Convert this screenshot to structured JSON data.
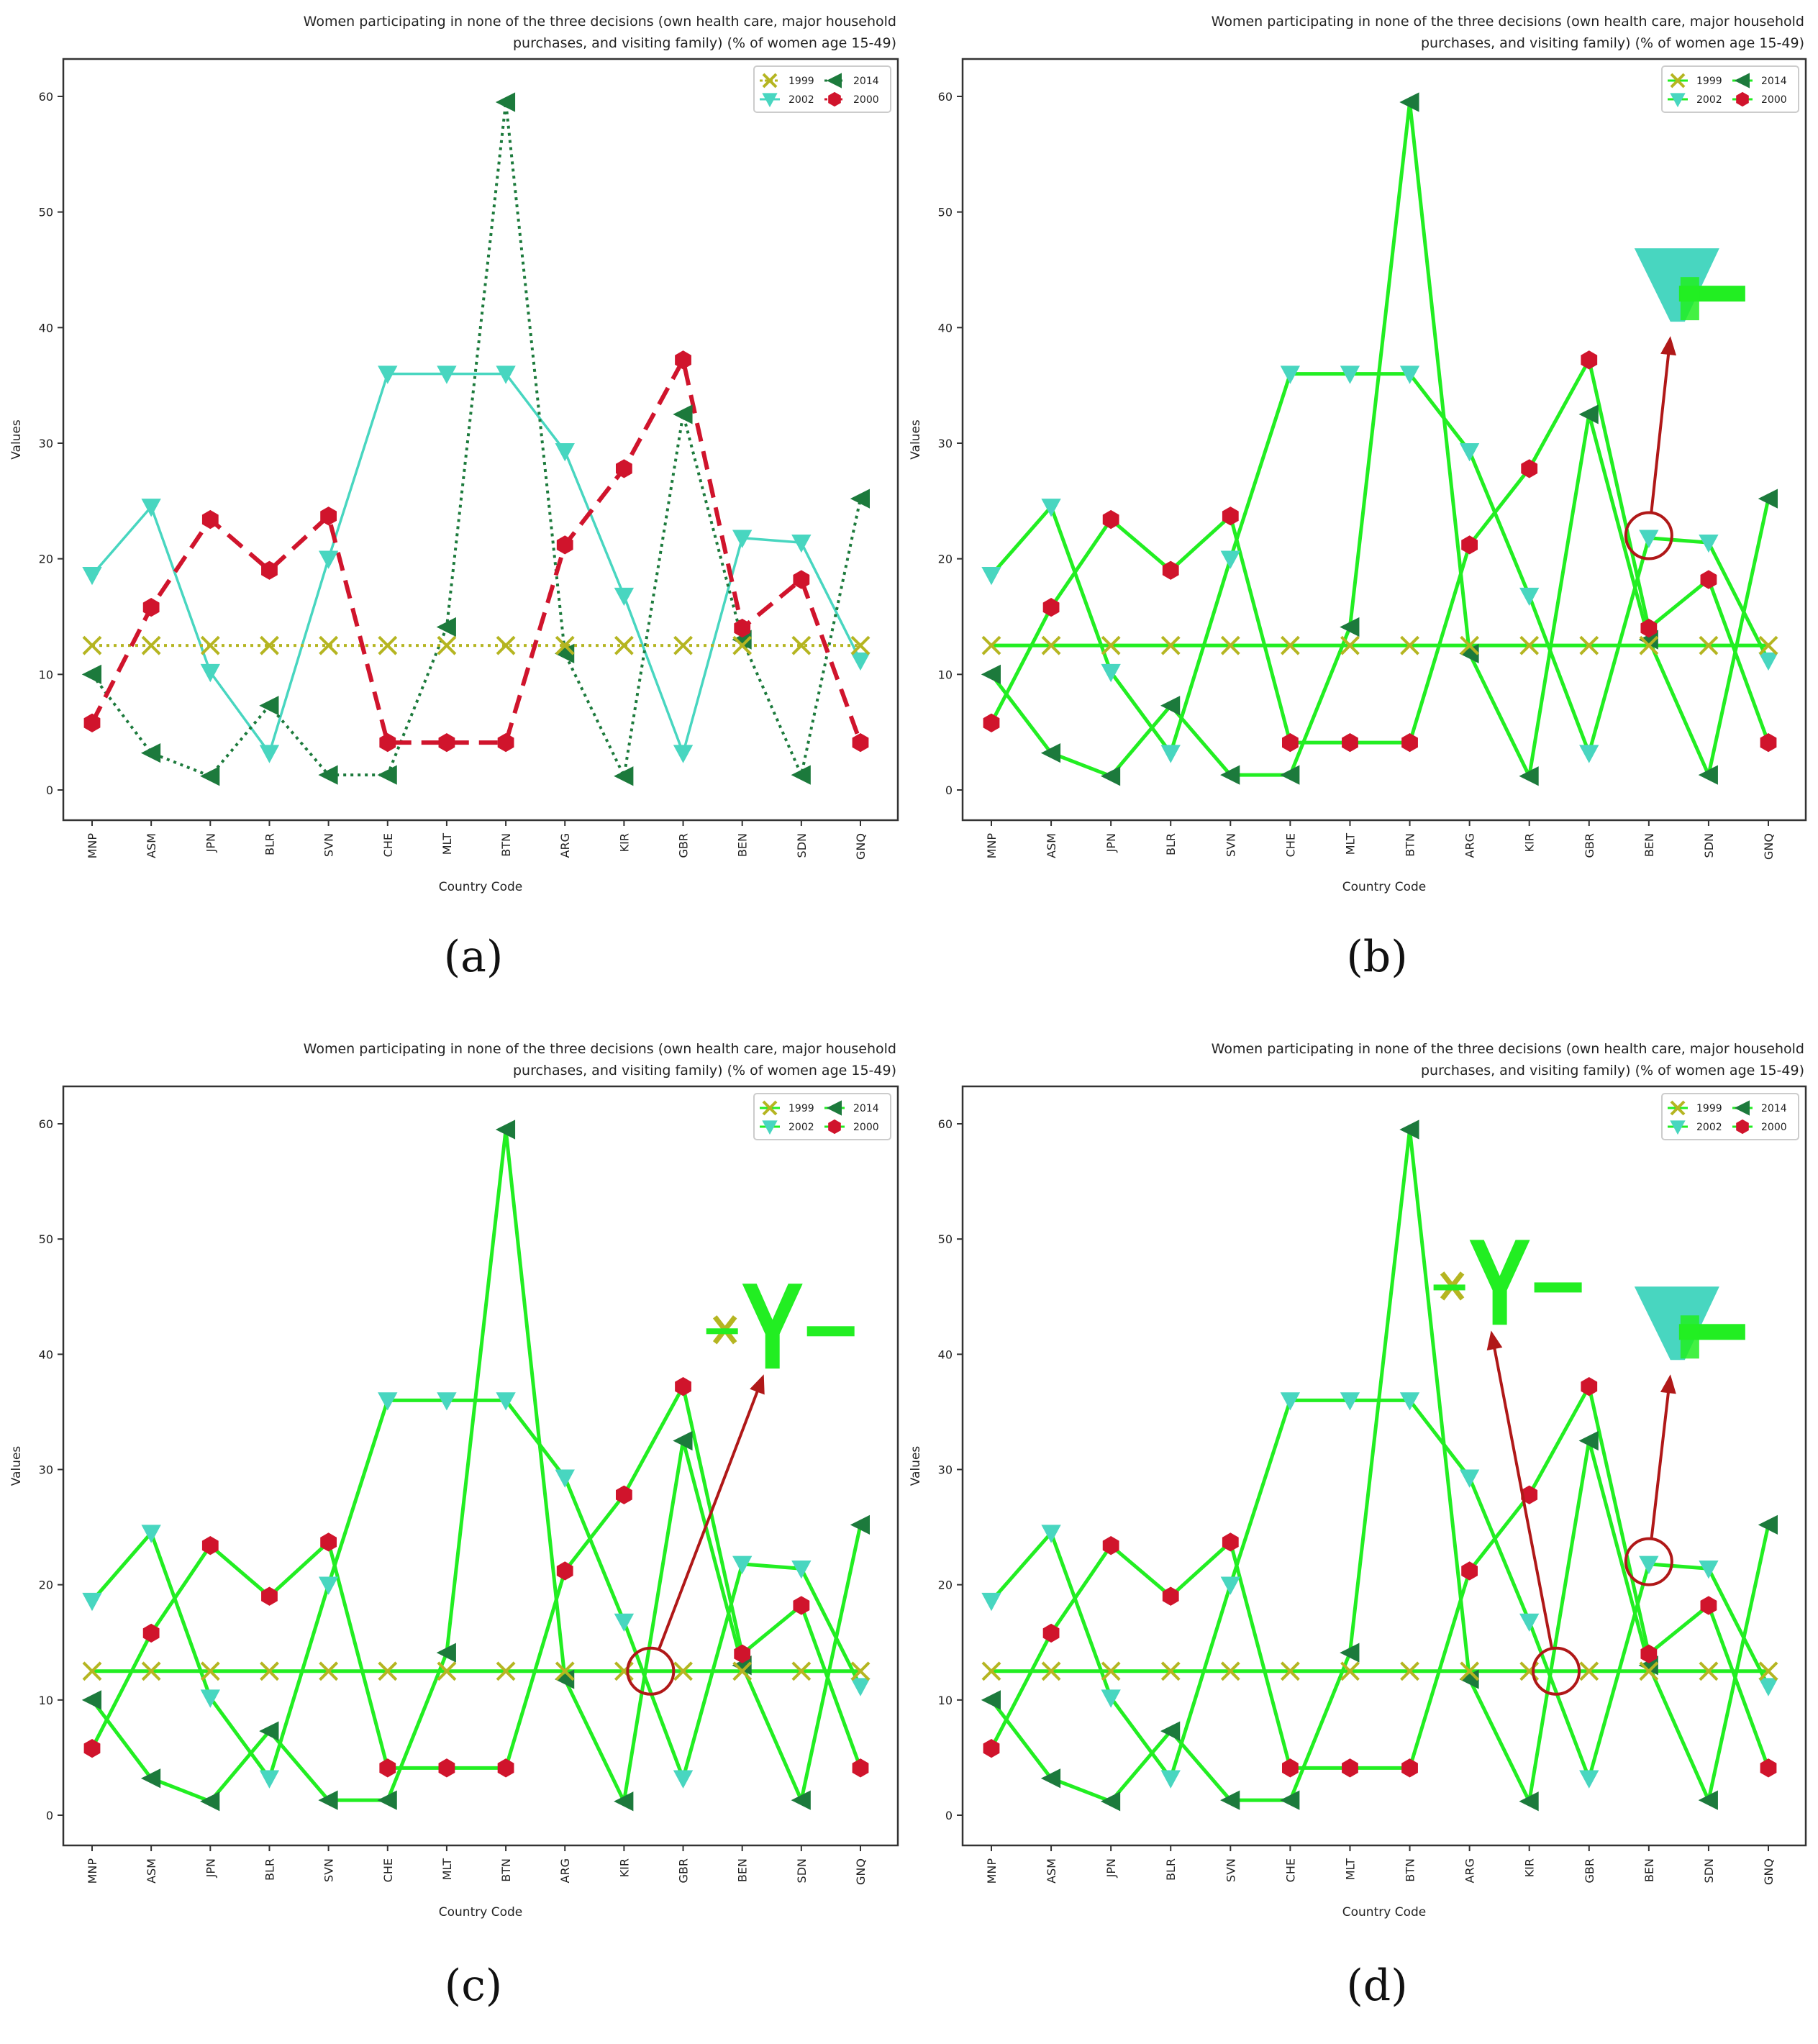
{
  "chart_data": [
    {
      "type": "line",
      "panel_caption": "(a)",
      "style": "original",
      "title_lines": [
        "Women participating in none of the three decisions (own health care, major household",
        "purchases, and visiting family) (% of women age 15-49)"
      ],
      "xlabel": "Country Code",
      "ylabel": "Values",
      "ylim": [
        0,
        60
      ],
      "yticks": [
        "0",
        "10",
        "20",
        "30",
        "40",
        "50",
        "60"
      ],
      "categories": [
        "MNP",
        "ASM",
        "JPN",
        "BLR",
        "SVN",
        "CHE",
        "MLT",
        "BTN",
        "ARG",
        "KIR",
        "GBR",
        "BEN",
        "SDN",
        "GNQ"
      ],
      "legend": [
        "1999",
        "2014",
        "2002",
        "2000"
      ],
      "series": [
        {
          "name": "1999",
          "values": [
            12.5,
            12.5,
            12.5,
            12.5,
            12.5,
            12.5,
            12.5,
            12.5,
            12.5,
            12.5,
            12.5,
            12.5,
            12.5,
            12.5
          ]
        },
        {
          "name": "2014",
          "values": [
            10,
            3.2,
            1.2,
            7.3,
            1.3,
            1.3,
            14.1,
            59.5,
            11.8,
            1.2,
            32.5,
            13,
            1.3,
            25.2
          ]
        },
        {
          "name": "2002",
          "values": [
            18.6,
            24.5,
            10.2,
            3.2,
            20,
            36,
            36,
            36,
            29.3,
            16.8,
            3.2,
            21.8,
            21.4,
            11.2
          ]
        },
        {
          "name": "2000",
          "values": [
            5.8,
            15.8,
            23.4,
            19,
            23.7,
            4.1,
            4.1,
            4.1,
            21.2,
            27.8,
            37.2,
            14,
            18.2,
            4.1
          ]
        }
      ]
    },
    {
      "type": "line",
      "panel_caption": "(b)",
      "style": "green",
      "title_lines": [
        "Women participating in none of the three decisions (own health care, major household",
        "purchases, and visiting family) (% of women age 15-49)"
      ],
      "xlabel": "Country Code",
      "ylabel": "Values",
      "ylim": [
        0,
        60
      ],
      "yticks": [
        "0",
        "10",
        "20",
        "30",
        "40",
        "50",
        "60"
      ],
      "categories": [
        "MNP",
        "ASM",
        "JPN",
        "BLR",
        "SVN",
        "CHE",
        "MLT",
        "BTN",
        "ARG",
        "KIR",
        "GBR",
        "BEN",
        "SDN",
        "GNQ"
      ],
      "legend": [
        "1999",
        "2014",
        "2002",
        "2000"
      ],
      "series": [
        {
          "name": "1999",
          "values": [
            12.5,
            12.5,
            12.5,
            12.5,
            12.5,
            12.5,
            12.5,
            12.5,
            12.5,
            12.5,
            12.5,
            12.5,
            12.5,
            12.5
          ]
        },
        {
          "name": "2014",
          "values": [
            10,
            3.2,
            1.2,
            7.3,
            1.3,
            1.3,
            14.1,
            59.5,
            11.8,
            1.2,
            32.5,
            13,
            1.3,
            25.2
          ]
        },
        {
          "name": "2002",
          "values": [
            18.6,
            24.5,
            10.2,
            3.2,
            20,
            36,
            36,
            36,
            29.3,
            16.8,
            3.2,
            21.8,
            21.4,
            11.2
          ]
        },
        {
          "name": "2000",
          "values": [
            5.8,
            15.8,
            23.4,
            19,
            23.7,
            4.1,
            4.1,
            4.1,
            21.2,
            27.8,
            37.2,
            14,
            18.2,
            4.1
          ]
        }
      ],
      "annotations": [
        {
          "circle_at": {
            "category": "BEN",
            "value": 22
          },
          "zoom_at": {
            "category": "BEN",
            "value": 43
          },
          "zoom_content": "2002-legend"
        }
      ]
    },
    {
      "type": "line",
      "panel_caption": "(c)",
      "style": "green",
      "title_lines": [
        "Women participating in none of the three decisions (own health care, major household",
        "purchases, and visiting family) (% of women age 15-49)"
      ],
      "xlabel": "Country Code",
      "ylabel": "Values",
      "ylim": [
        0,
        60
      ],
      "yticks": [
        "0",
        "10",
        "20",
        "30",
        "40",
        "50",
        "60"
      ],
      "categories": [
        "MNP",
        "ASM",
        "JPN",
        "BLR",
        "SVN",
        "CHE",
        "MLT",
        "BTN",
        "ARG",
        "KIR",
        "GBR",
        "BEN",
        "SDN",
        "GNQ"
      ],
      "legend": [
        "1999",
        "2014",
        "2002",
        "2000"
      ],
      "series": [
        {
          "name": "1999",
          "values": [
            12.5,
            12.5,
            12.5,
            12.5,
            12.5,
            12.5,
            12.5,
            12.5,
            12.5,
            12.5,
            12.5,
            12.5,
            12.5,
            12.5
          ]
        },
        {
          "name": "2014",
          "values": [
            10,
            3.2,
            1.2,
            7.3,
            1.3,
            1.3,
            14.1,
            59.5,
            11.8,
            1.2,
            32.5,
            13,
            1.3,
            25.2
          ]
        },
        {
          "name": "2002",
          "values": [
            18.6,
            24.5,
            10.2,
            3.2,
            20,
            36,
            36,
            36,
            29.3,
            16.8,
            3.2,
            21.8,
            21.4,
            11.2
          ]
        },
        {
          "name": "2000",
          "values": [
            5.8,
            15.8,
            23.4,
            19,
            23.7,
            4.1,
            4.1,
            4.1,
            21.2,
            27.8,
            37.2,
            14,
            18.2,
            4.1
          ]
        }
      ],
      "annotations": [
        {
          "circle_at": {
            "category": "KIR",
            "value": 12.5,
            "offset": 0.45
          },
          "zoom_at": {
            "category": "BEN",
            "value": 42
          },
          "zoom_content": "1999-2002-2014-legend"
        }
      ]
    },
    {
      "type": "line",
      "panel_caption": "(d)",
      "style": "green",
      "title_lines": [
        "Women participating in none of the three decisions (own health care, major household",
        "purchases, and visiting family) (% of women age 15-49)"
      ],
      "xlabel": "Country Code",
      "ylabel": "Values",
      "ylim": [
        0,
        60
      ],
      "yticks": [
        "0",
        "10",
        "20",
        "30",
        "40",
        "50",
        "60"
      ],
      "categories": [
        "MNP",
        "ASM",
        "JPN",
        "BLR",
        "SVN",
        "CHE",
        "MLT",
        "BTN",
        "ARG",
        "KIR",
        "GBR",
        "BEN",
        "SDN",
        "GNQ"
      ],
      "legend": [
        "1999",
        "2014",
        "2002",
        "2000"
      ],
      "series": [
        {
          "name": "1999",
          "values": [
            12.5,
            12.5,
            12.5,
            12.5,
            12.5,
            12.5,
            12.5,
            12.5,
            12.5,
            12.5,
            12.5,
            12.5,
            12.5,
            12.5
          ]
        },
        {
          "name": "2014",
          "values": [
            10,
            3.2,
            1.2,
            7.3,
            1.3,
            1.3,
            14.1,
            59.5,
            11.8,
            1.2,
            32.5,
            13,
            1.3,
            25.2
          ]
        },
        {
          "name": "2002",
          "values": [
            18.6,
            24.5,
            10.2,
            3.2,
            20,
            36,
            36,
            36,
            29.3,
            16.8,
            3.2,
            21.8,
            21.4,
            11.2
          ]
        },
        {
          "name": "2000",
          "values": [
            5.8,
            15.8,
            23.4,
            19,
            23.7,
            4.1,
            4.1,
            4.1,
            21.2,
            27.8,
            37.2,
            14,
            18.2,
            4.1
          ]
        }
      ],
      "annotations": [
        {
          "circle_at": {
            "category": "KIR",
            "value": 12.5,
            "offset": 0.45
          },
          "zoom_at": {
            "category": "ARG",
            "value": 45.8
          },
          "zoom_content": "1999-2002-2014-legend"
        },
        {
          "circle_at": {
            "category": "BEN",
            "value": 22
          },
          "zoom_at": {
            "category": "BEN",
            "value": 42
          },
          "zoom_content": "2002-legend"
        }
      ]
    }
  ],
  "colors": {
    "s1999": "#b5b521",
    "s2014": "#1c7a3c",
    "s2002": "#48d6c0",
    "s2000": "#d0142c",
    "highlight": "#22ee22",
    "annotation": "#b01818",
    "axis": "#333333"
  }
}
